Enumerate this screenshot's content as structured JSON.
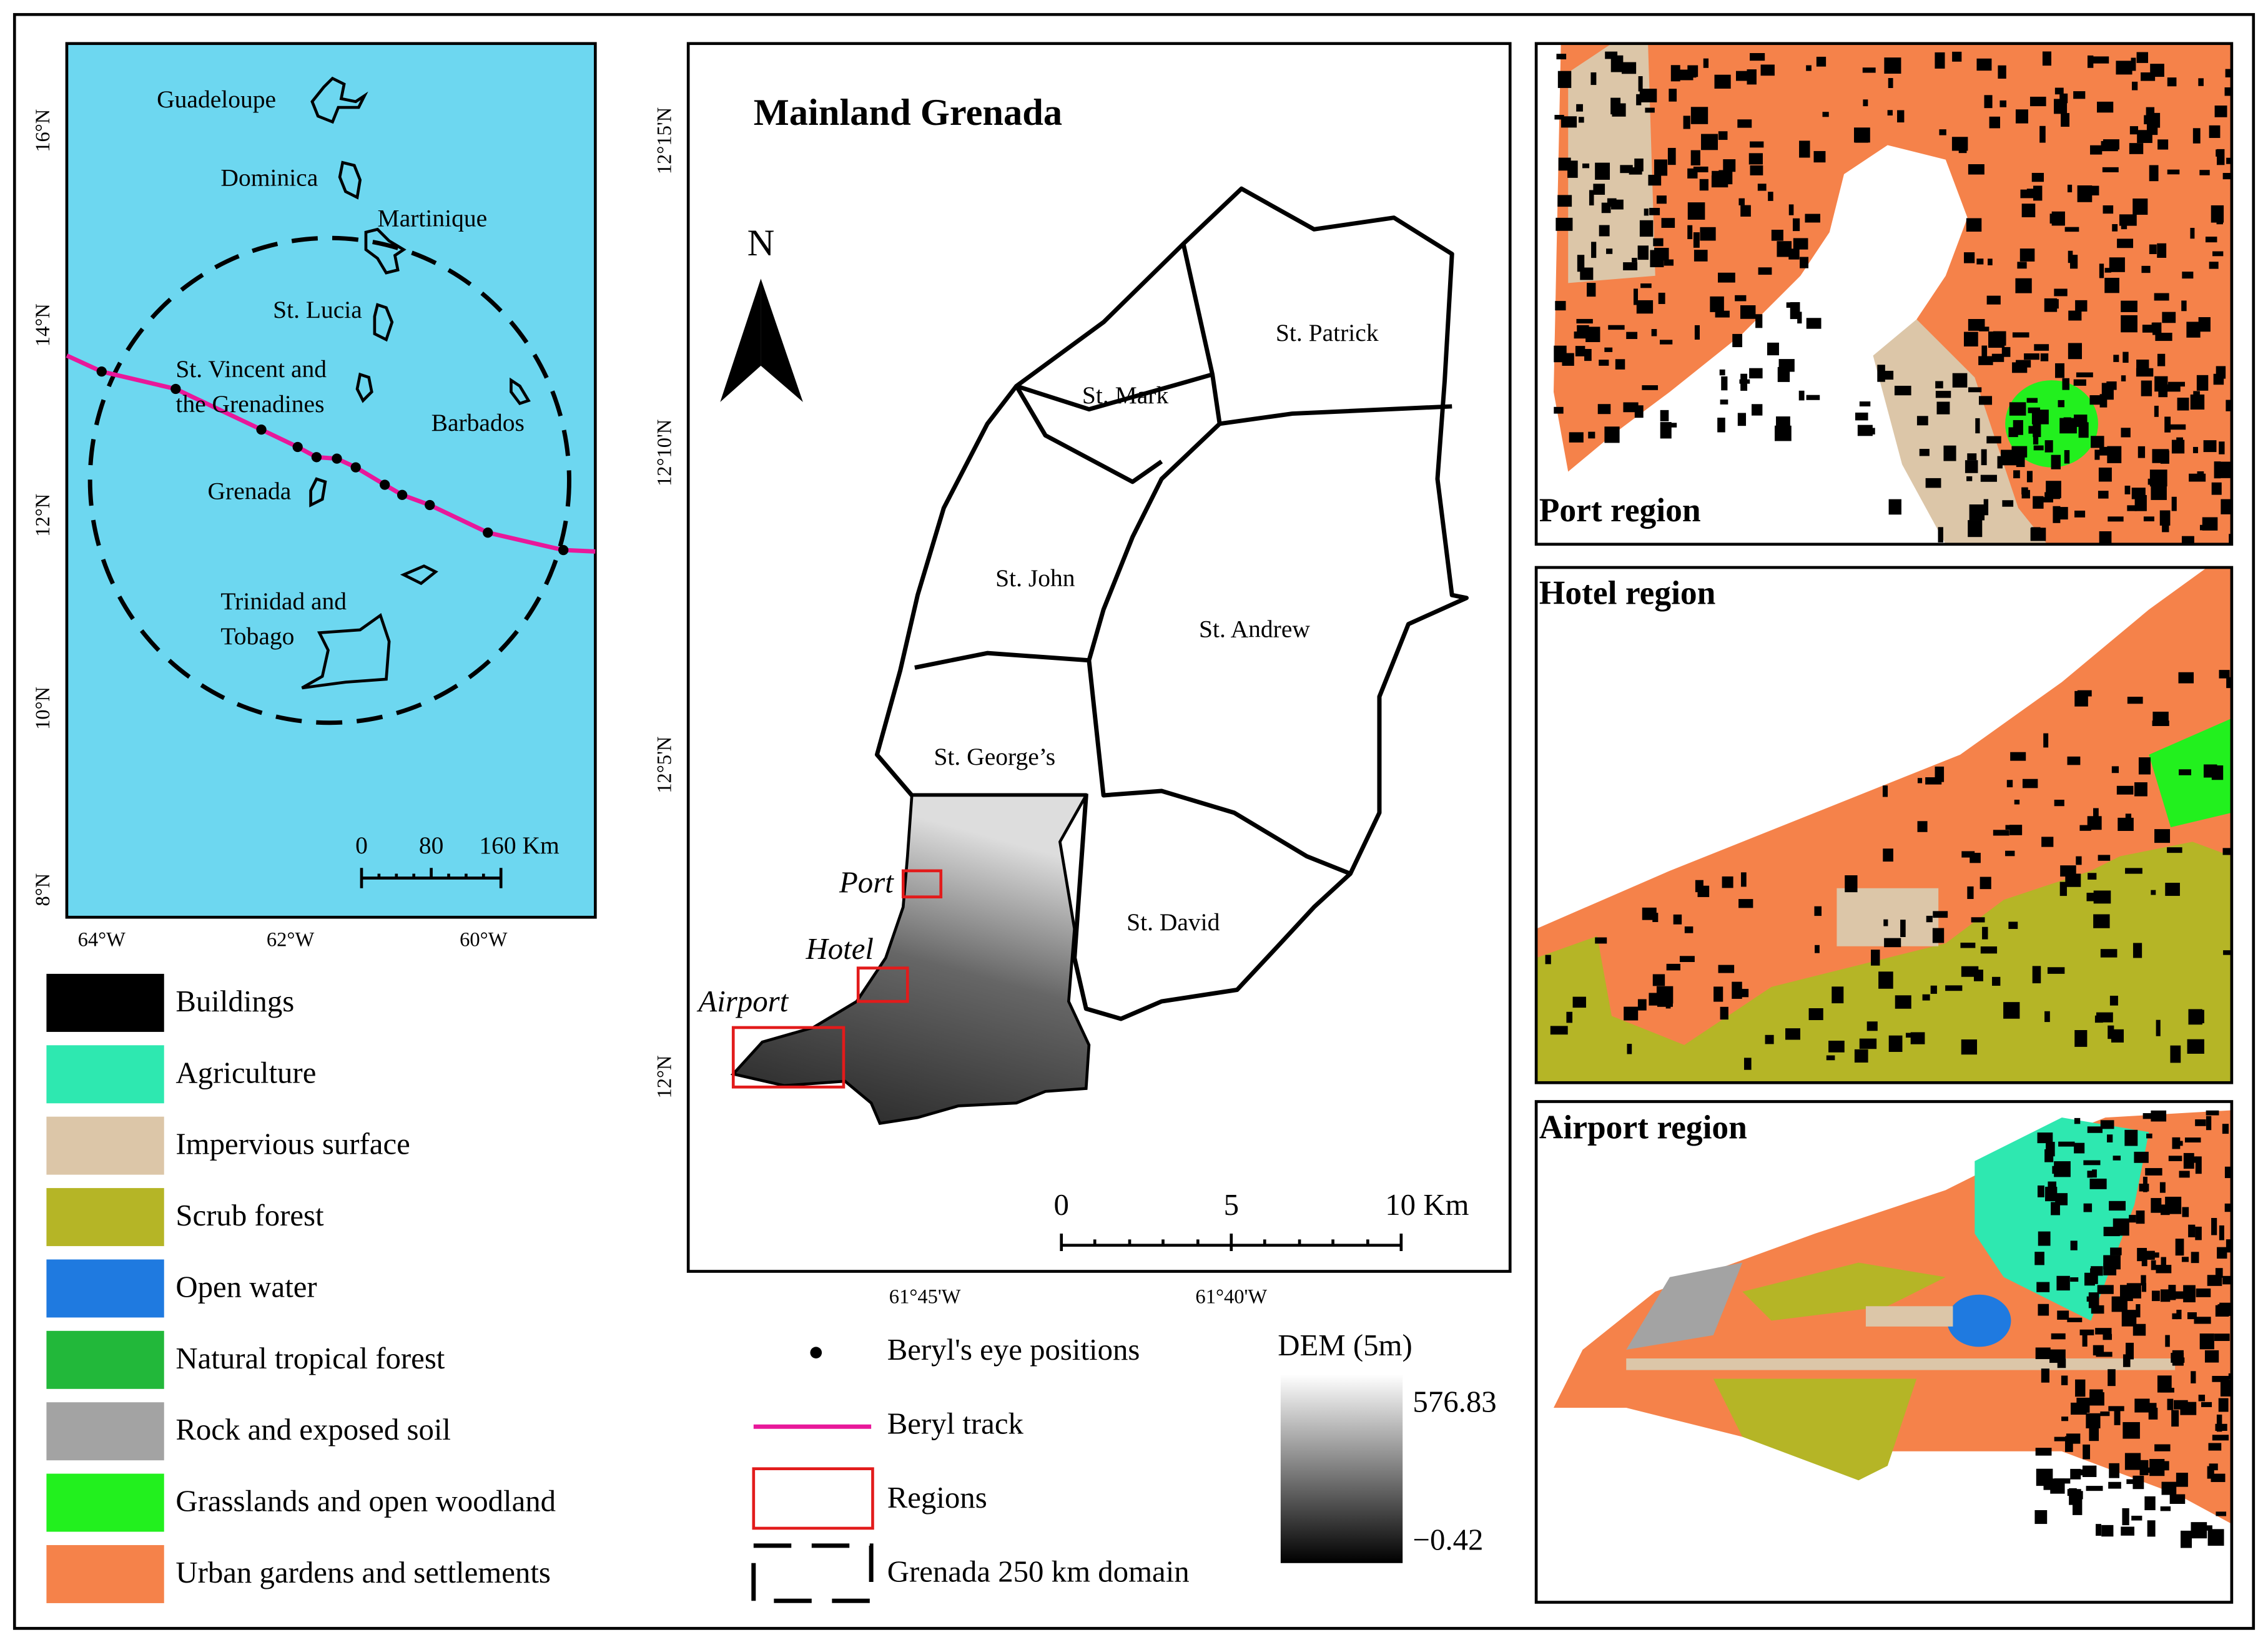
{
  "inset_map": {
    "islands": [
      [
        "Guadeloupe"
      ],
      [
        "Dominica"
      ],
      [
        "Martinique"
      ],
      [
        "St. Lucia"
      ],
      [
        "St. Vincent and",
        "the Grenadines"
      ],
      [
        "Barbados"
      ],
      [
        "Grenada"
      ],
      [
        "Trinidad and",
        "Tobago"
      ]
    ],
    "lat_labels": [
      "16°N",
      "14°N",
      "12°N",
      "10°N",
      "8°N"
    ],
    "lon_labels": [
      "64°W",
      "62°W",
      "60°W"
    ],
    "scale_labels": [
      "0",
      "80",
      "160 Km"
    ]
  },
  "land_cover_legend": [
    {
      "label": "Buildings",
      "color": "#000000"
    },
    {
      "label": "Agriculture",
      "color": "#2ee8b0"
    },
    {
      "label": "Impervious surface",
      "color": "#dcc6a8"
    },
    {
      "label": "Scrub forest",
      "color": "#b5b526"
    },
    {
      "label": "Open water",
      "color": "#1f7ae0"
    },
    {
      "label": "Natural tropical forest",
      "color": "#22b83a"
    },
    {
      "label": "Rock and exposed soil",
      "color": "#a3a3a3"
    },
    {
      "label": "Grasslands and open woodland",
      "color": "#22f01e"
    },
    {
      "label": "Urban gardens and settlements",
      "color": "#f5824a"
    }
  ],
  "main_map": {
    "title": "Mainland Grenada",
    "north": "N",
    "parishes": [
      "St. Patrick",
      "St. Mark",
      "St. John",
      "St. Andrew",
      "St. George’s",
      "St. David"
    ],
    "regions": [
      "Port",
      "Hotel",
      "Airport"
    ],
    "lat_labels": [
      "12°15'N",
      "12°10'N",
      "12°5'N",
      "12°N"
    ],
    "lon_labels": [
      "61°45'W",
      "61°40'W"
    ],
    "scale_labels": [
      "0",
      "5",
      "10 Km"
    ]
  },
  "symbol_legend": [
    "Beryl's eye positions",
    "Beryl track",
    "Regions",
    "Grenada 250 km domain"
  ],
  "dem_legend": {
    "title": "DEM (5m)",
    "max": "576.83",
    "min": "−0.42"
  },
  "region_panels": [
    "Port region",
    "Hotel region",
    "Airport region"
  ]
}
